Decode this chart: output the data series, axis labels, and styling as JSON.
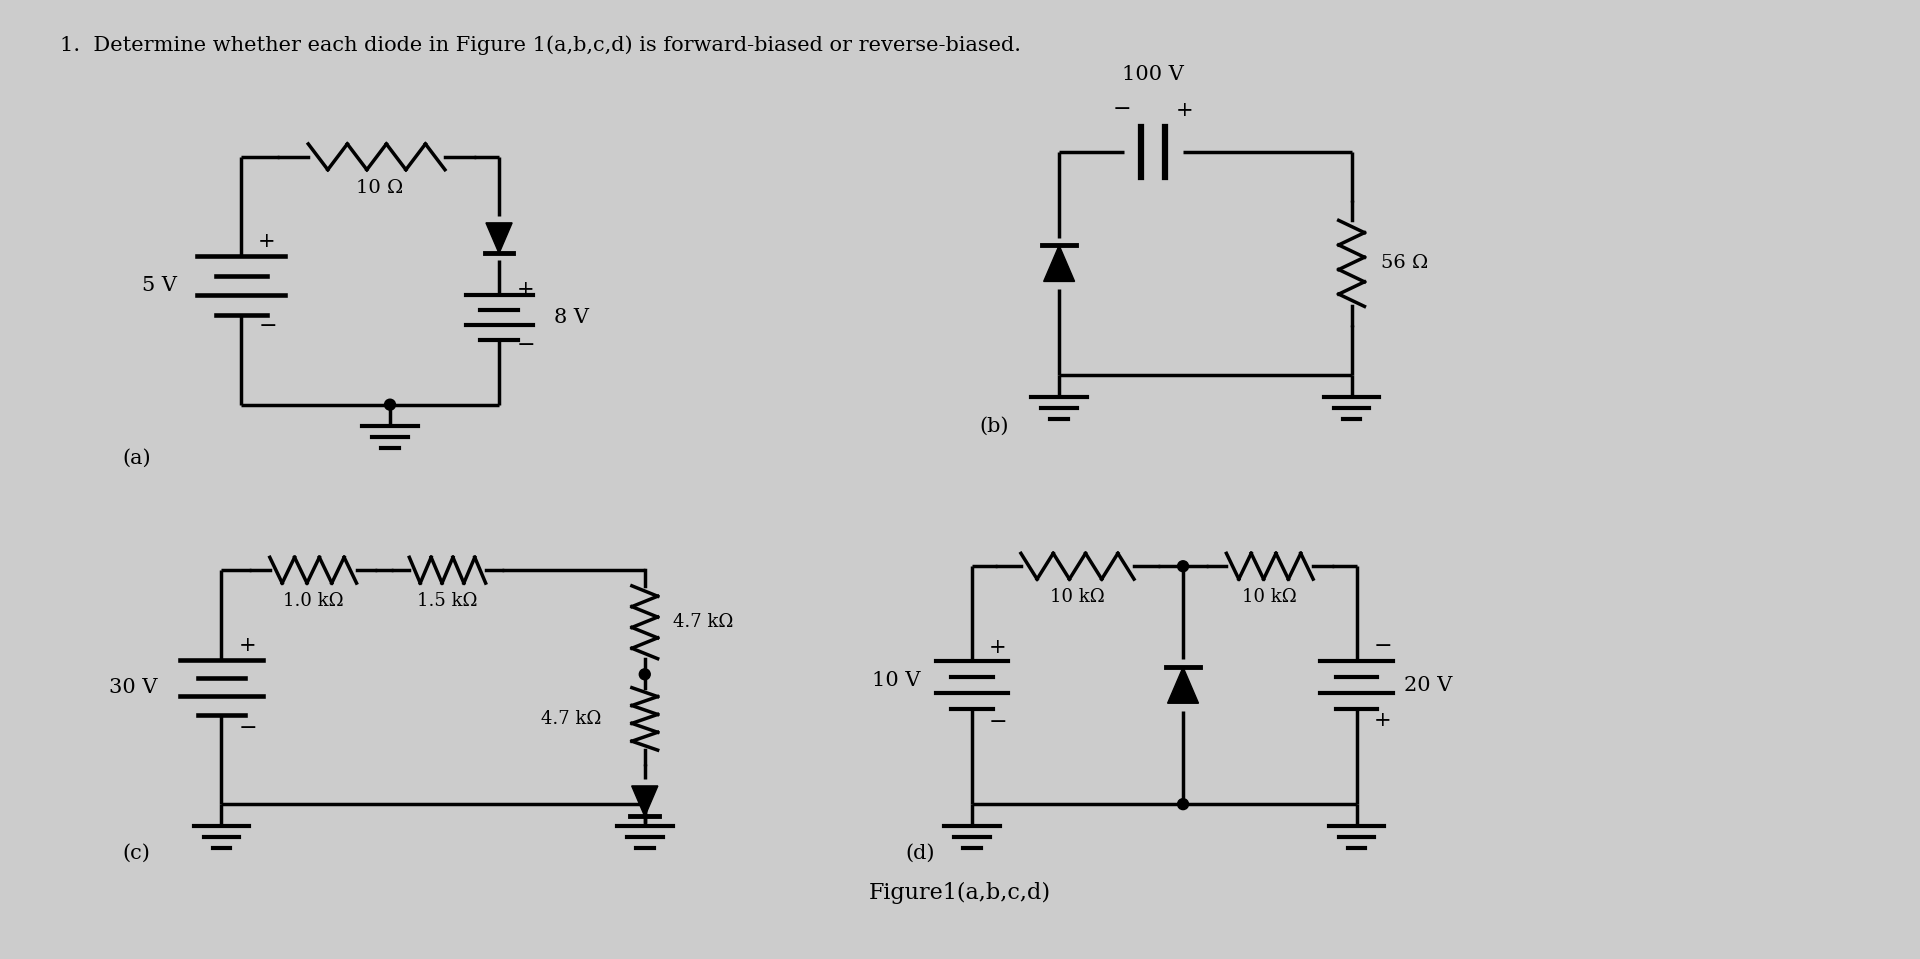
{
  "title": "1.  Determine whether each diode in Figure 1(a,b,c,d) is forward-biased or reverse-biased.",
  "figure_caption": "Figure1(a,b,c,d)",
  "bg_color": "#cccccc",
  "line_color": "#000000",
  "label_a": "(a)",
  "label_b": "(b)",
  "label_c": "(c)",
  "label_d": "(d)"
}
